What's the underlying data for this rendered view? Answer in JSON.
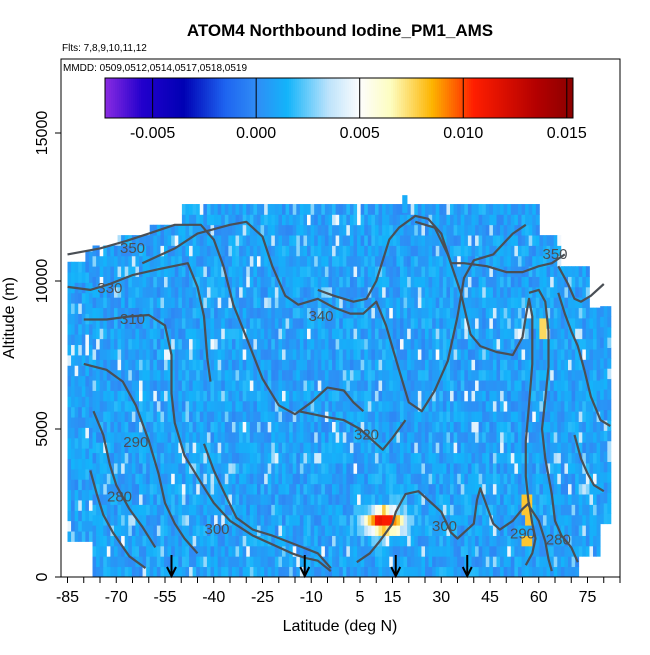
{
  "chart_data": {
    "type": "heatmap",
    "title": "ATOM4 Northbound Iodine_PM1_AMS",
    "subtitle_flights": "Flts: 7,8,9,10,11,12",
    "subtitle_dates": "MMDD: 0509,0512,0514,0517,0518,0519",
    "xlabel": "Latitude (deg N)",
    "ylabel": "Altitude (m)",
    "xlim": [
      -87,
      85
    ],
    "ylim": [
      0,
      17500
    ],
    "x_ticks": [
      -85,
      -70,
      -55,
      -40,
      -25,
      -10,
      5,
      15,
      30,
      45,
      60,
      75
    ],
    "x_tick_labels": [
      "-85",
      "-70",
      "-55",
      "-40",
      "-25",
      "-10",
      "5",
      "15",
      "30",
      "45",
      "60",
      "75"
    ],
    "y_ticks": [
      0,
      5000,
      10000,
      15000
    ],
    "y_tick_labels": [
      "0",
      "5000",
      "10000",
      "15000"
    ],
    "colorbar": {
      "min": -0.0073,
      "max": 0.0153,
      "ticks": [
        -0.005,
        0.0,
        0.005,
        0.01,
        0.015
      ],
      "tick_labels": [
        "-0.005",
        "0.000",
        "0.005",
        "0.010",
        "0.015"
      ],
      "stops": [
        {
          "v": -0.0073,
          "c": "#8a2be2"
        },
        {
          "v": -0.0055,
          "c": "#2200cc"
        },
        {
          "v": -0.0035,
          "c": "#0000b4"
        },
        {
          "v": -0.0015,
          "c": "#1e64f0"
        },
        {
          "v": 0.0,
          "c": "#2f8cf5"
        },
        {
          "v": 0.0015,
          "c": "#13b4fa"
        },
        {
          "v": 0.0035,
          "c": "#bde3fb"
        },
        {
          "v": 0.005,
          "c": "#fdfdfd"
        },
        {
          "v": 0.0065,
          "c": "#fdfdc0"
        },
        {
          "v": 0.0085,
          "c": "#fdb400"
        },
        {
          "v": 0.0105,
          "c": "#ff1e00"
        },
        {
          "v": 0.0135,
          "c": "#b40000"
        },
        {
          "v": 0.0153,
          "c": "#8b0000"
        }
      ]
    },
    "contour_labels": [
      {
        "text": "350",
        "lat": -65,
        "alt": 10950
      },
      {
        "text": "330",
        "lat": -72,
        "alt": 9600
      },
      {
        "text": "310",
        "lat": -65,
        "alt": 8550
      },
      {
        "text": "340",
        "lat": -7,
        "alt": 8650
      },
      {
        "text": "320",
        "lat": 7,
        "alt": 4650
      },
      {
        "text": "290",
        "lat": -64,
        "alt": 4400
      },
      {
        "text": "280",
        "lat": -69,
        "alt": 2550
      },
      {
        "text": "300",
        "lat": -39,
        "alt": 1450
      },
      {
        "text": "300",
        "lat": 31,
        "alt": 1550
      },
      {
        "text": "290",
        "lat": 55,
        "alt": 1300
      },
      {
        "text": "280",
        "lat": 66,
        "alt": 1100
      },
      {
        "text": "350",
        "lat": 65,
        "alt": 10750
      }
    ],
    "profile_arrows_lat": [
      -53,
      -12,
      16,
      38
    ]
  }
}
